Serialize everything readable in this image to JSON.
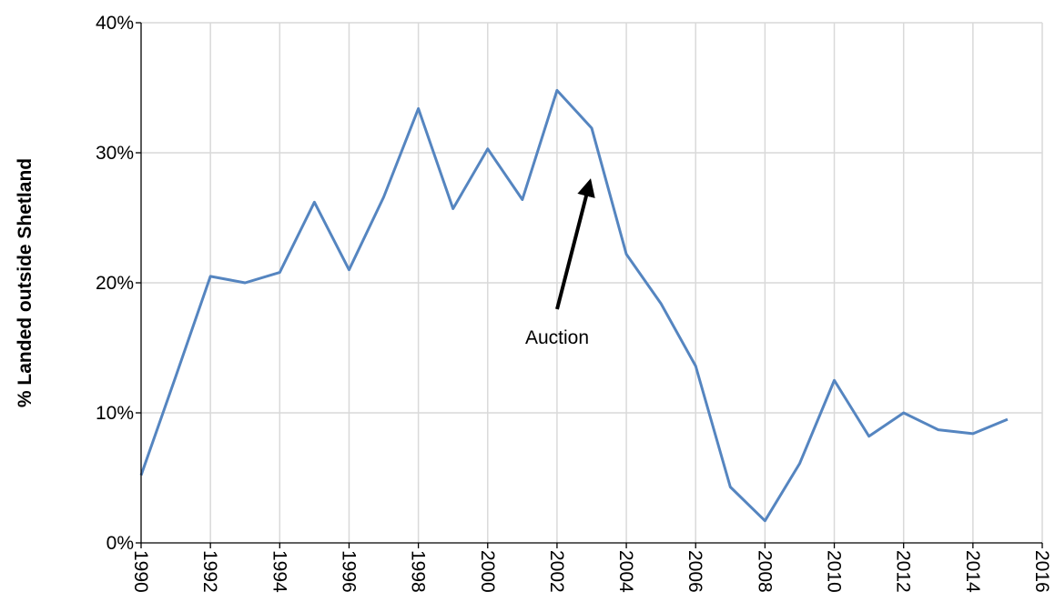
{
  "chart_data": {
    "type": "line",
    "y_label": "% Landed outside Shetland",
    "annotation": "Auction",
    "x": [
      1990,
      1991,
      1992,
      1993,
      1994,
      1995,
      1996,
      1997,
      1998,
      1999,
      2000,
      2001,
      2002,
      2003,
      2004,
      2005,
      2006,
      2007,
      2008,
      2009,
      2010,
      2011,
      2012,
      2013,
      2014,
      2015
    ],
    "series": [
      {
        "color": "#5585c0",
        "values": [
          5.2,
          12.8,
          20.5,
          20.0,
          20.8,
          26.2,
          21.0,
          26.6,
          33.4,
          25.7,
          30.3,
          26.4,
          34.8,
          31.9,
          22.2,
          18.4,
          13.6,
          4.3,
          1.7,
          6.1,
          12.5,
          8.2,
          10.0,
          8.7,
          8.4,
          9.5
        ]
      }
    ],
    "xlim": [
      1990,
      2016
    ],
    "xticks": [
      1990,
      1992,
      1994,
      1996,
      1998,
      2000,
      2002,
      2004,
      2006,
      2008,
      2010,
      2012,
      2014,
      2016
    ],
    "ylim": [
      0,
      40
    ],
    "yticks": [
      {
        "value": 0,
        "label": "0%"
      },
      {
        "value": 10,
        "label": "10%"
      },
      {
        "value": 20,
        "label": "20%"
      },
      {
        "value": 30,
        "label": "30%"
      },
      {
        "value": 40,
        "label": "40%"
      }
    ],
    "grid": true
  }
}
